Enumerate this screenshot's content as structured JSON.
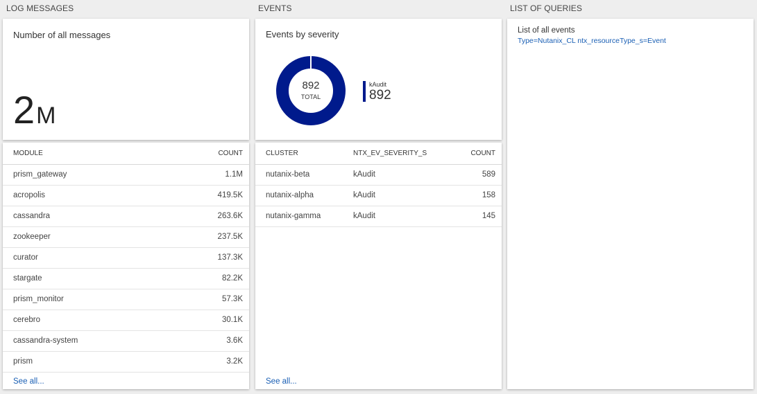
{
  "sections": {
    "log_messages": "LOG MESSAGES",
    "events": "EVENTS",
    "queries": "LIST OF QUERIES"
  },
  "log_tile": {
    "title": "Number of all messages",
    "value": "2",
    "unit": "M"
  },
  "module_table": {
    "col_module": "MODULE",
    "col_count": "COUNT",
    "rows": [
      {
        "module": "prism_gateway",
        "count": "1.1M"
      },
      {
        "module": "acropolis",
        "count": "419.5K"
      },
      {
        "module": "cassandra",
        "count": "263.6K"
      },
      {
        "module": "zookeeper",
        "count": "237.5K"
      },
      {
        "module": "curator",
        "count": "137.3K"
      },
      {
        "module": "stargate",
        "count": "82.2K"
      },
      {
        "module": "prism_monitor",
        "count": "57.3K"
      },
      {
        "module": "cerebro",
        "count": "30.1K"
      },
      {
        "module": "cassandra-system",
        "count": "3.6K"
      },
      {
        "module": "prism",
        "count": "3.2K"
      }
    ],
    "see_all": "See all..."
  },
  "events_tile": {
    "title": "Events by severity",
    "total_value": "892",
    "total_label": "TOTAL",
    "legend_label": "kAudit",
    "legend_value": "892",
    "color": "#001a8c"
  },
  "events_table": {
    "col_cluster": "CLUSTER",
    "col_severity": "NTX_EV_SEVERITY_S",
    "col_count": "COUNT",
    "rows": [
      {
        "cluster": "nutanix-beta",
        "severity": "kAudit",
        "count": "589"
      },
      {
        "cluster": "nutanix-alpha",
        "severity": "kAudit",
        "count": "158"
      },
      {
        "cluster": "nutanix-gamma",
        "severity": "kAudit",
        "count": "145"
      }
    ],
    "see_all": "See all..."
  },
  "queries_tile": {
    "title": "List of all events",
    "query": "Type=Nutanix_CL ntx_resourceType_s=Event"
  }
}
